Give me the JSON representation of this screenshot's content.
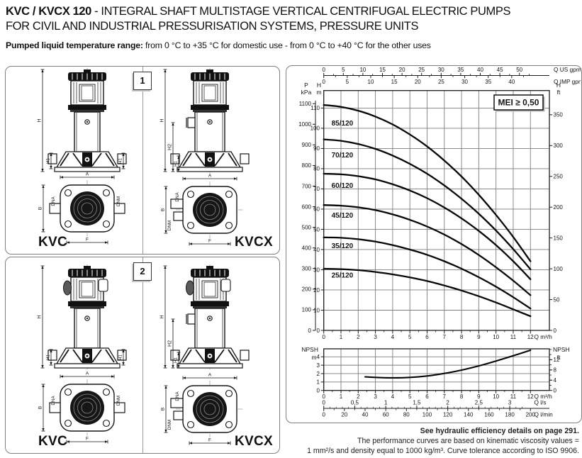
{
  "page": {
    "title_strong": "KVC / KVCX 120",
    "title_rest": " - INTEGRAL SHAFT MULTISTAGE VERTICAL CENTRIFUGAL ELECTRIC PUMPS",
    "title_line2": "FOR CIVIL AND INDUSTRIAL PRESSURISATION SYSTEMS, PRESSURE UNITS",
    "temp_label": "Pumped liquid temperature range:",
    "temp_text": " from 0 °C to +35 °C for domestic use - from 0 °C to +40 °C for the other uses"
  },
  "panels": [
    {
      "number": "1",
      "left_model": "KVC",
      "right_model": "KVCX"
    },
    {
      "number": "2",
      "left_model": "KVC",
      "right_model": "KVCX"
    }
  ],
  "dimension_labels": {
    "h": "H",
    "h1": "H1",
    "h2": "H2",
    "a": "A",
    "b": "B",
    "f": "F",
    "dna": "DNA",
    "dnm": "DNM"
  },
  "chart_data": [
    {
      "type": "line",
      "badge": "MEI ≥ 0,50",
      "x_bottom": {
        "label": "Q m³/h",
        "ticks": [
          0,
          1,
          2,
          3,
          4,
          5,
          6,
          7,
          8,
          9,
          10,
          11,
          12
        ]
      },
      "x_top_us": {
        "label": "Q US gpm",
        "ticks": [
          0,
          5,
          10,
          15,
          20,
          25,
          30,
          35,
          40,
          45,
          50
        ]
      },
      "x_top_imp": {
        "label": "Q IMP gpm",
        "ticks": [
          0,
          5,
          10,
          15,
          20,
          25,
          30,
          35,
          40
        ]
      },
      "y_left_kpa": {
        "label": "P kPa",
        "ticks": [
          0,
          100,
          200,
          300,
          400,
          500,
          600,
          700,
          800,
          900,
          1000,
          1100
        ]
      },
      "y_left_m": {
        "label": "H m",
        "ticks": [
          0,
          10,
          20,
          30,
          40,
          50,
          60,
          70,
          80,
          90,
          100,
          110
        ]
      },
      "y_right_ft": {
        "label": "H ft",
        "ticks": [
          0,
          50,
          100,
          150,
          200,
          250,
          300,
          350
        ]
      },
      "ylim_m": [
        0,
        118.5
      ],
      "xlim": [
        0,
        13.1
      ],
      "series": [
        {
          "name": "85/120",
          "label_at": [
            0.45,
            101.4
          ],
          "points": [
            [
              0,
              111.5
            ],
            [
              1,
              110.6
            ],
            [
              2,
              108.7
            ],
            [
              3,
              105.8
            ],
            [
              4,
              101.9
            ],
            [
              5,
              96.9
            ],
            [
              6,
              91.0
            ],
            [
              7,
              84.0
            ],
            [
              8,
              76.1
            ],
            [
              9,
              67.1
            ],
            [
              10,
              57.1
            ],
            [
              11,
              46.2
            ],
            [
              12,
              34.2
            ]
          ]
        },
        {
          "name": "70/120",
          "label_at": [
            0.45,
            85.6
          ],
          "points": [
            [
              0,
              94.5
            ],
            [
              1,
              93.8
            ],
            [
              2,
              92.2
            ],
            [
              3,
              89.8
            ],
            [
              4,
              86.5
            ],
            [
              5,
              82.4
            ],
            [
              6,
              77.5
            ],
            [
              7,
              71.7
            ],
            [
              8,
              65.1
            ],
            [
              9,
              57.7
            ],
            [
              10,
              49.4
            ],
            [
              11,
              40.2
            ],
            [
              12,
              30.2
            ]
          ]
        },
        {
          "name": "60/120",
          "label_at": [
            0.45,
            70.5
          ],
          "points": [
            [
              0,
              77.5
            ],
            [
              1,
              77.2
            ],
            [
              2,
              76.3
            ],
            [
              3,
              74.7
            ],
            [
              4,
              72.3
            ],
            [
              5,
              69.2
            ],
            [
              6,
              65.4
            ],
            [
              7,
              60.8
            ],
            [
              8,
              55.4
            ],
            [
              9,
              49.2
            ],
            [
              10,
              42.2
            ],
            [
              11,
              34.2
            ],
            [
              12,
              25.3
            ]
          ]
        },
        {
          "name": "45/120",
          "label_at": [
            0.45,
            55.8
          ],
          "points": [
            [
              0,
              62.0
            ],
            [
              1,
              61.7
            ],
            [
              2,
              60.9
            ],
            [
              3,
              59.5
            ],
            [
              4,
              57.4
            ],
            [
              5,
              54.7
            ],
            [
              6,
              51.4
            ],
            [
              7,
              47.4
            ],
            [
              8,
              42.7
            ],
            [
              9,
              37.3
            ],
            [
              10,
              31.2
            ],
            [
              11,
              24.6
            ],
            [
              12,
              17.4
            ]
          ]
        },
        {
          "name": "35/120",
          "label_at": [
            0.45,
            40.7
          ],
          "points": [
            [
              0,
              46.0
            ],
            [
              1,
              45.8
            ],
            [
              2,
              45.1
            ],
            [
              3,
              43.9
            ],
            [
              4,
              42.2
            ],
            [
              5,
              40.0
            ],
            [
              6,
              37.4
            ],
            [
              7,
              34.2
            ],
            [
              8,
              30.5
            ],
            [
              9,
              26.3
            ],
            [
              10,
              21.6
            ],
            [
              11,
              16.4
            ],
            [
              12,
              10.8
            ]
          ]
        },
        {
          "name": "25/120",
          "label_at": [
            0.45,
            26.2
          ],
          "points": [
            [
              0,
              30.5
            ],
            [
              1,
              30.3
            ],
            [
              2,
              29.8
            ],
            [
              3,
              28.9
            ],
            [
              4,
              27.7
            ],
            [
              5,
              26.2
            ],
            [
              6,
              24.4
            ],
            [
              7,
              22.2
            ],
            [
              8,
              19.7
            ],
            [
              9,
              16.9
            ],
            [
              10,
              13.8
            ],
            [
              11,
              10.4
            ],
            [
              12,
              7.0
            ]
          ]
        }
      ]
    },
    {
      "type": "line",
      "name": "NPSH",
      "x_bottom": {
        "label": "Q m³/h",
        "ticks": [
          0,
          1,
          2,
          3,
          4,
          5,
          6,
          7,
          8,
          9,
          10,
          11,
          12
        ]
      },
      "x_ls": {
        "label": "Q l/s",
        "ticks": [
          0,
          0.5,
          1,
          1.5,
          2,
          2.5,
          3
        ],
        "tick_labels": [
          "0",
          "0,5",
          "1",
          "1,5",
          "2",
          "2,5",
          "3"
        ]
      },
      "x_lmin": {
        "label": "Q l/min",
        "ticks": [
          0,
          20,
          40,
          60,
          80,
          100,
          120,
          140,
          160,
          180,
          200
        ]
      },
      "y_left": {
        "label": "NPSH m",
        "ticks": [
          0,
          1,
          2,
          3,
          4
        ]
      },
      "y_right": {
        "label": "NPSH ft",
        "ticks": [
          0,
          4,
          8,
          12
        ]
      },
      "ylim_m": [
        0,
        4.95
      ],
      "series": [
        {
          "name": "NPSH",
          "points": [
            [
              2.4,
              1.62
            ],
            [
              3,
              1.55
            ],
            [
              4,
              1.5
            ],
            [
              5,
              1.55
            ],
            [
              6,
              1.72
            ],
            [
              7,
              2.02
            ],
            [
              8,
              2.42
            ],
            [
              9,
              2.92
            ],
            [
              10,
              3.5
            ],
            [
              11,
              4.12
            ],
            [
              12,
              4.78
            ]
          ]
        }
      ]
    }
  ],
  "footer": {
    "line1": "See hydraulic efficiency details on page 291.",
    "line2": "The performance curves are based on kinematic viscosity values =",
    "line3": "1 mm²/s and density equal to 1000 kg/m³. Curve tolerance according to ISO 9906."
  }
}
